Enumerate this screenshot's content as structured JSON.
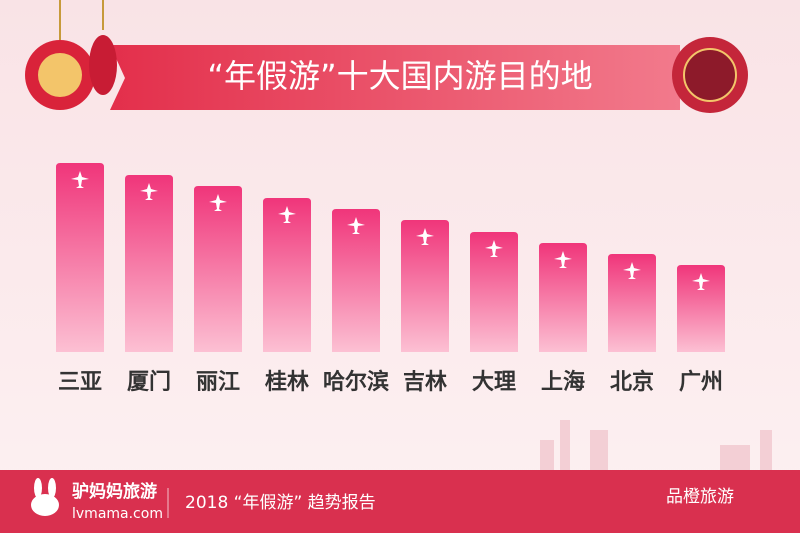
{
  "chart_data": {
    "type": "bar",
    "title": "“年假游”十大国内游目的地",
    "categories": [
      "三亚",
      "厦门",
      "丽江",
      "桂林",
      "哈尔滨",
      "吉林",
      "大理",
      "上海",
      "北京",
      "广州"
    ],
    "values": [
      189,
      177,
      166,
      154,
      143,
      132,
      120,
      109,
      98,
      87
    ],
    "color": "#f0357a",
    "ylim": [
      0,
      200
    ],
    "footer": {
      "brand": "驴妈妈旅游",
      "site": "lvmama.com",
      "report": "2018 “年假游” 趋势报告",
      "watermark": "品橙旅游"
    }
  }
}
